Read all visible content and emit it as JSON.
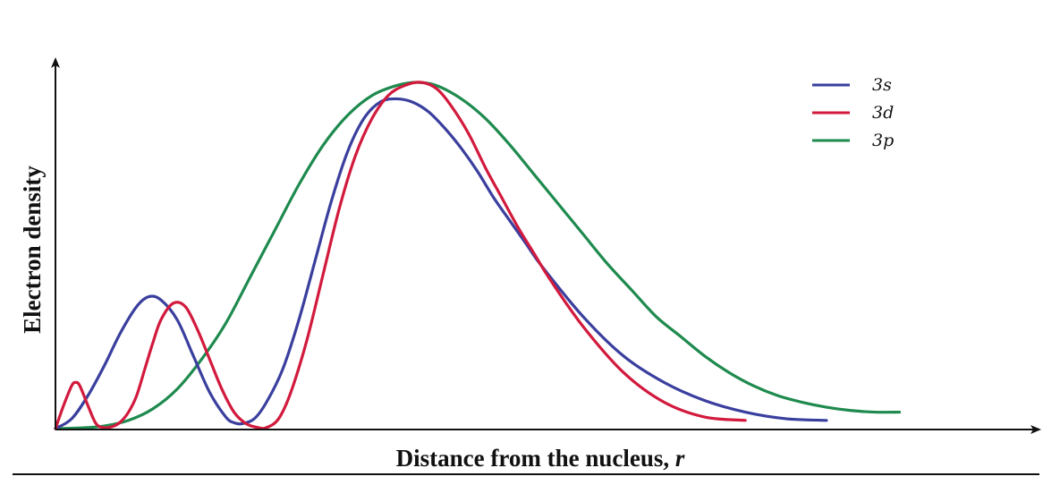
{
  "chart_data": {
    "type": "line",
    "title": "",
    "xlabel": "Distance from the nucleus,",
    "xlabel_variable": "r",
    "ylabel": "Electron density",
    "xlim": [
      0,
      11
    ],
    "ylim": [
      0,
      1.05
    ],
    "grid": false,
    "tick_labels": false,
    "legend_position": "top-right",
    "series": [
      {
        "name": "3s",
        "color": "#3a3f9e",
        "x": [
          0,
          0.2,
          0.4,
          0.6,
          0.8,
          1.0,
          1.15,
          1.3,
          1.5,
          1.7,
          1.9,
          2.1,
          2.2,
          2.3,
          2.45,
          2.6,
          2.8,
          3.0,
          3.2,
          3.4,
          3.6,
          3.8,
          4.0,
          4.2,
          4.4,
          4.6,
          4.8,
          5.0,
          5.2,
          5.4,
          5.6,
          5.8,
          6.0,
          6.5,
          7.0,
          7.5,
          8.0,
          8.5,
          9.0,
          9.5
        ],
        "y": [
          0.0,
          0.03,
          0.1,
          0.19,
          0.29,
          0.37,
          0.4,
          0.39,
          0.33,
          0.22,
          0.11,
          0.035,
          0.018,
          0.015,
          0.03,
          0.08,
          0.18,
          0.33,
          0.51,
          0.69,
          0.84,
          0.94,
          0.99,
          1.0,
          0.99,
          0.96,
          0.91,
          0.85,
          0.78,
          0.7,
          0.63,
          0.56,
          0.49,
          0.34,
          0.22,
          0.14,
          0.085,
          0.05,
          0.03,
          0.025
        ]
      },
      {
        "name": "3d",
        "color": "#d21a3d",
        "x": [
          0,
          0.1,
          0.2,
          0.25,
          0.3,
          0.4,
          0.5,
          0.6,
          0.7,
          0.8,
          0.9,
          1.0,
          1.1,
          1.2,
          1.3,
          1.45,
          1.6,
          1.75,
          1.9,
          2.05,
          2.2,
          2.35,
          2.5,
          2.6,
          2.75,
          2.9,
          3.1,
          3.3,
          3.5,
          3.7,
          3.9,
          4.1,
          4.3,
          4.5,
          4.7,
          4.9,
          5.1,
          5.3,
          5.5,
          5.7,
          5.9,
          6.1,
          6.5,
          7.0,
          7.5,
          8.0,
          8.5
        ],
        "y": [
          0.0,
          0.07,
          0.13,
          0.14,
          0.13,
          0.07,
          0.015,
          0.003,
          0.006,
          0.02,
          0.05,
          0.1,
          0.18,
          0.26,
          0.33,
          0.38,
          0.37,
          0.3,
          0.21,
          0.12,
          0.05,
          0.015,
          0.003,
          0.003,
          0.03,
          0.11,
          0.27,
          0.47,
          0.67,
          0.83,
          0.94,
          1.01,
          1.04,
          1.05,
          1.03,
          0.97,
          0.89,
          0.79,
          0.7,
          0.61,
          0.53,
          0.45,
          0.31,
          0.17,
          0.08,
          0.035,
          0.025
        ]
      },
      {
        "name": "3p",
        "color": "#1e8a4e",
        "x": [
          0,
          0.3,
          0.6,
          0.9,
          1.2,
          1.5,
          1.8,
          2.1,
          2.4,
          2.7,
          3.0,
          3.3,
          3.6,
          3.9,
          4.2,
          4.45,
          4.7,
          5.0,
          5.3,
          5.6,
          5.9,
          6.2,
          6.5,
          6.8,
          7.1,
          7.4,
          7.7,
          8.0,
          8.3,
          8.6,
          8.9,
          9.2,
          9.5,
          9.8,
          10.1,
          10.4
        ],
        "y": [
          0.0,
          0.002,
          0.008,
          0.025,
          0.06,
          0.12,
          0.21,
          0.32,
          0.46,
          0.6,
          0.74,
          0.86,
          0.95,
          1.01,
          1.04,
          1.05,
          1.04,
          1.0,
          0.94,
          0.86,
          0.77,
          0.68,
          0.59,
          0.5,
          0.42,
          0.34,
          0.28,
          0.22,
          0.17,
          0.13,
          0.1,
          0.08,
          0.065,
          0.055,
          0.05,
          0.05
        ]
      }
    ]
  }
}
